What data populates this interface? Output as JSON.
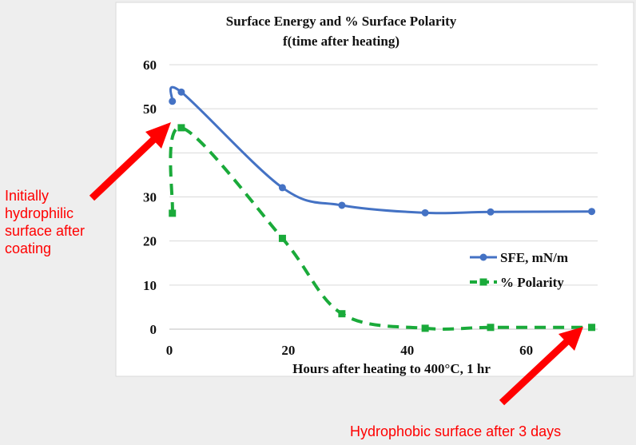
{
  "chart_data": {
    "type": "line",
    "title": [
      "Surface Energy and % Surface Polarity",
      "f(time after heating)"
    ],
    "xlabel": "Hours after heating to 400°C, 1 hr",
    "ylabel": "",
    "xlim": [
      0,
      72
    ],
    "ylim": [
      0,
      60
    ],
    "xticks": [
      0,
      20,
      40,
      60
    ],
    "yticks": [
      0,
      10,
      20,
      30,
      40,
      50,
      60
    ],
    "ytick_labels": [
      "0",
      "10",
      "20",
      "30",
      "",
      "50",
      "60"
    ],
    "grid": "horizontal",
    "legend_position": "right",
    "series": [
      {
        "name": "SFE, mN/m",
        "color": "#4472c4",
        "style": "solid",
        "marker": "circle",
        "x": [
          0.5,
          2,
          19,
          29,
          43,
          54,
          71
        ],
        "y": [
          51.7,
          53.8,
          32.1,
          28.1,
          26.4,
          26.6,
          26.7
        ]
      },
      {
        "name": "% Polarity",
        "color": "#1aaa3a",
        "style": "dashed",
        "marker": "square",
        "x": [
          0.5,
          2,
          19,
          29,
          43,
          54,
          71
        ],
        "y": [
          26.3,
          45.7,
          20.6,
          3.5,
          0.2,
          0.4,
          0.4
        ]
      }
    ]
  },
  "annotations": {
    "left_text": "Initially hydrophilic surface after coating",
    "bottom_text": "Hydrophobic surface after 3 days",
    "arrow_color": "#ff0000"
  }
}
